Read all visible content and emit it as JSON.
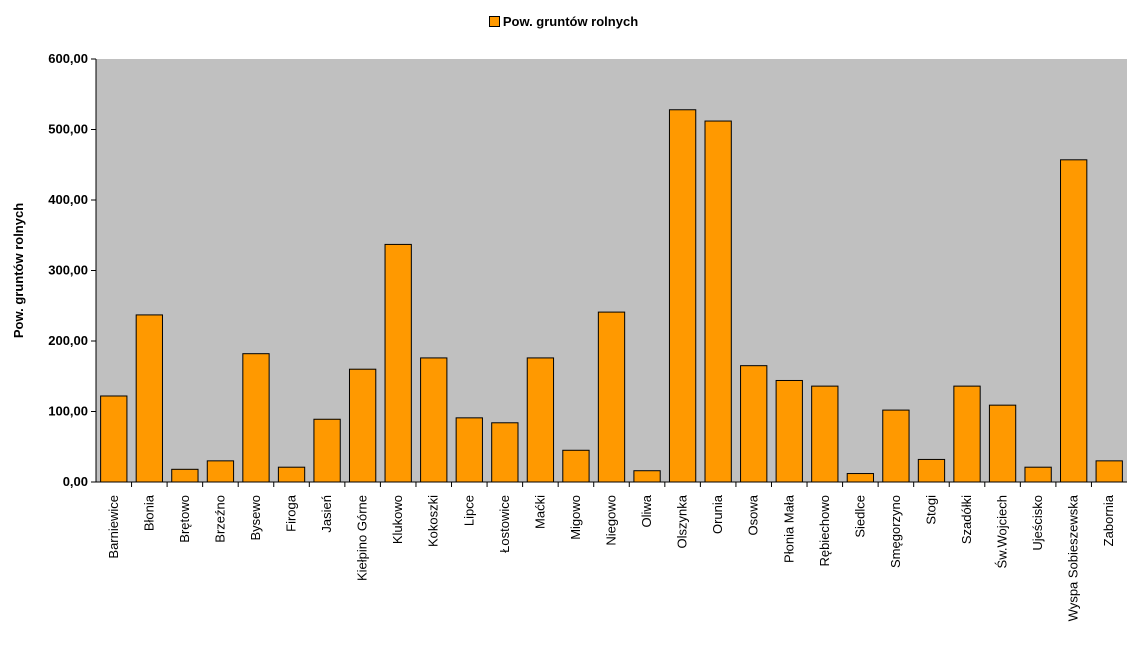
{
  "chart_data": {
    "type": "bar",
    "legend": [
      "Pow. gruntów rolnych"
    ],
    "legend_position": "top-center",
    "ylabel": "Pow. gruntów rolnych",
    "xlabel": "",
    "ylim": [
      0,
      600
    ],
    "yticks": [
      "0,00",
      "100,00",
      "200,00",
      "300,00",
      "400,00",
      "500,00",
      "600,00"
    ],
    "grid": false,
    "colors": {
      "bar": "#FF9900",
      "plot_bg": "#C0C0C0",
      "bar_stroke": "#000000"
    },
    "categories": [
      "Barniewice",
      "Błonia",
      "Brętowo",
      "Brzeźno",
      "Bysewo",
      "Firoga",
      "Jasień",
      "Kiełpino Górne",
      "Klukowo",
      "Kokoszki",
      "Lipce",
      "Łostowice",
      "Maćki",
      "Migowo",
      "Niegowo",
      "Oliwa",
      "Olszynka",
      "Orunia",
      "Osowa",
      "Płonia Mała",
      "Rębiechowo",
      "Siedlce",
      "Smęgorzyno",
      "Stogi",
      "Szadółki",
      "Św.Wojciech",
      "Ujeścisko",
      "Wyspa Sobieszewska",
      "Zabornia"
    ],
    "series": [
      {
        "name": "Pow. gruntów rolnych",
        "values": [
          122,
          237,
          18,
          30,
          182,
          21,
          89,
          160,
          337,
          176,
          91,
          84,
          176,
          45,
          241,
          16,
          528,
          512,
          165,
          144,
          136,
          12,
          102,
          32,
          136,
          109,
          21,
          457,
          30
        ]
      }
    ]
  }
}
